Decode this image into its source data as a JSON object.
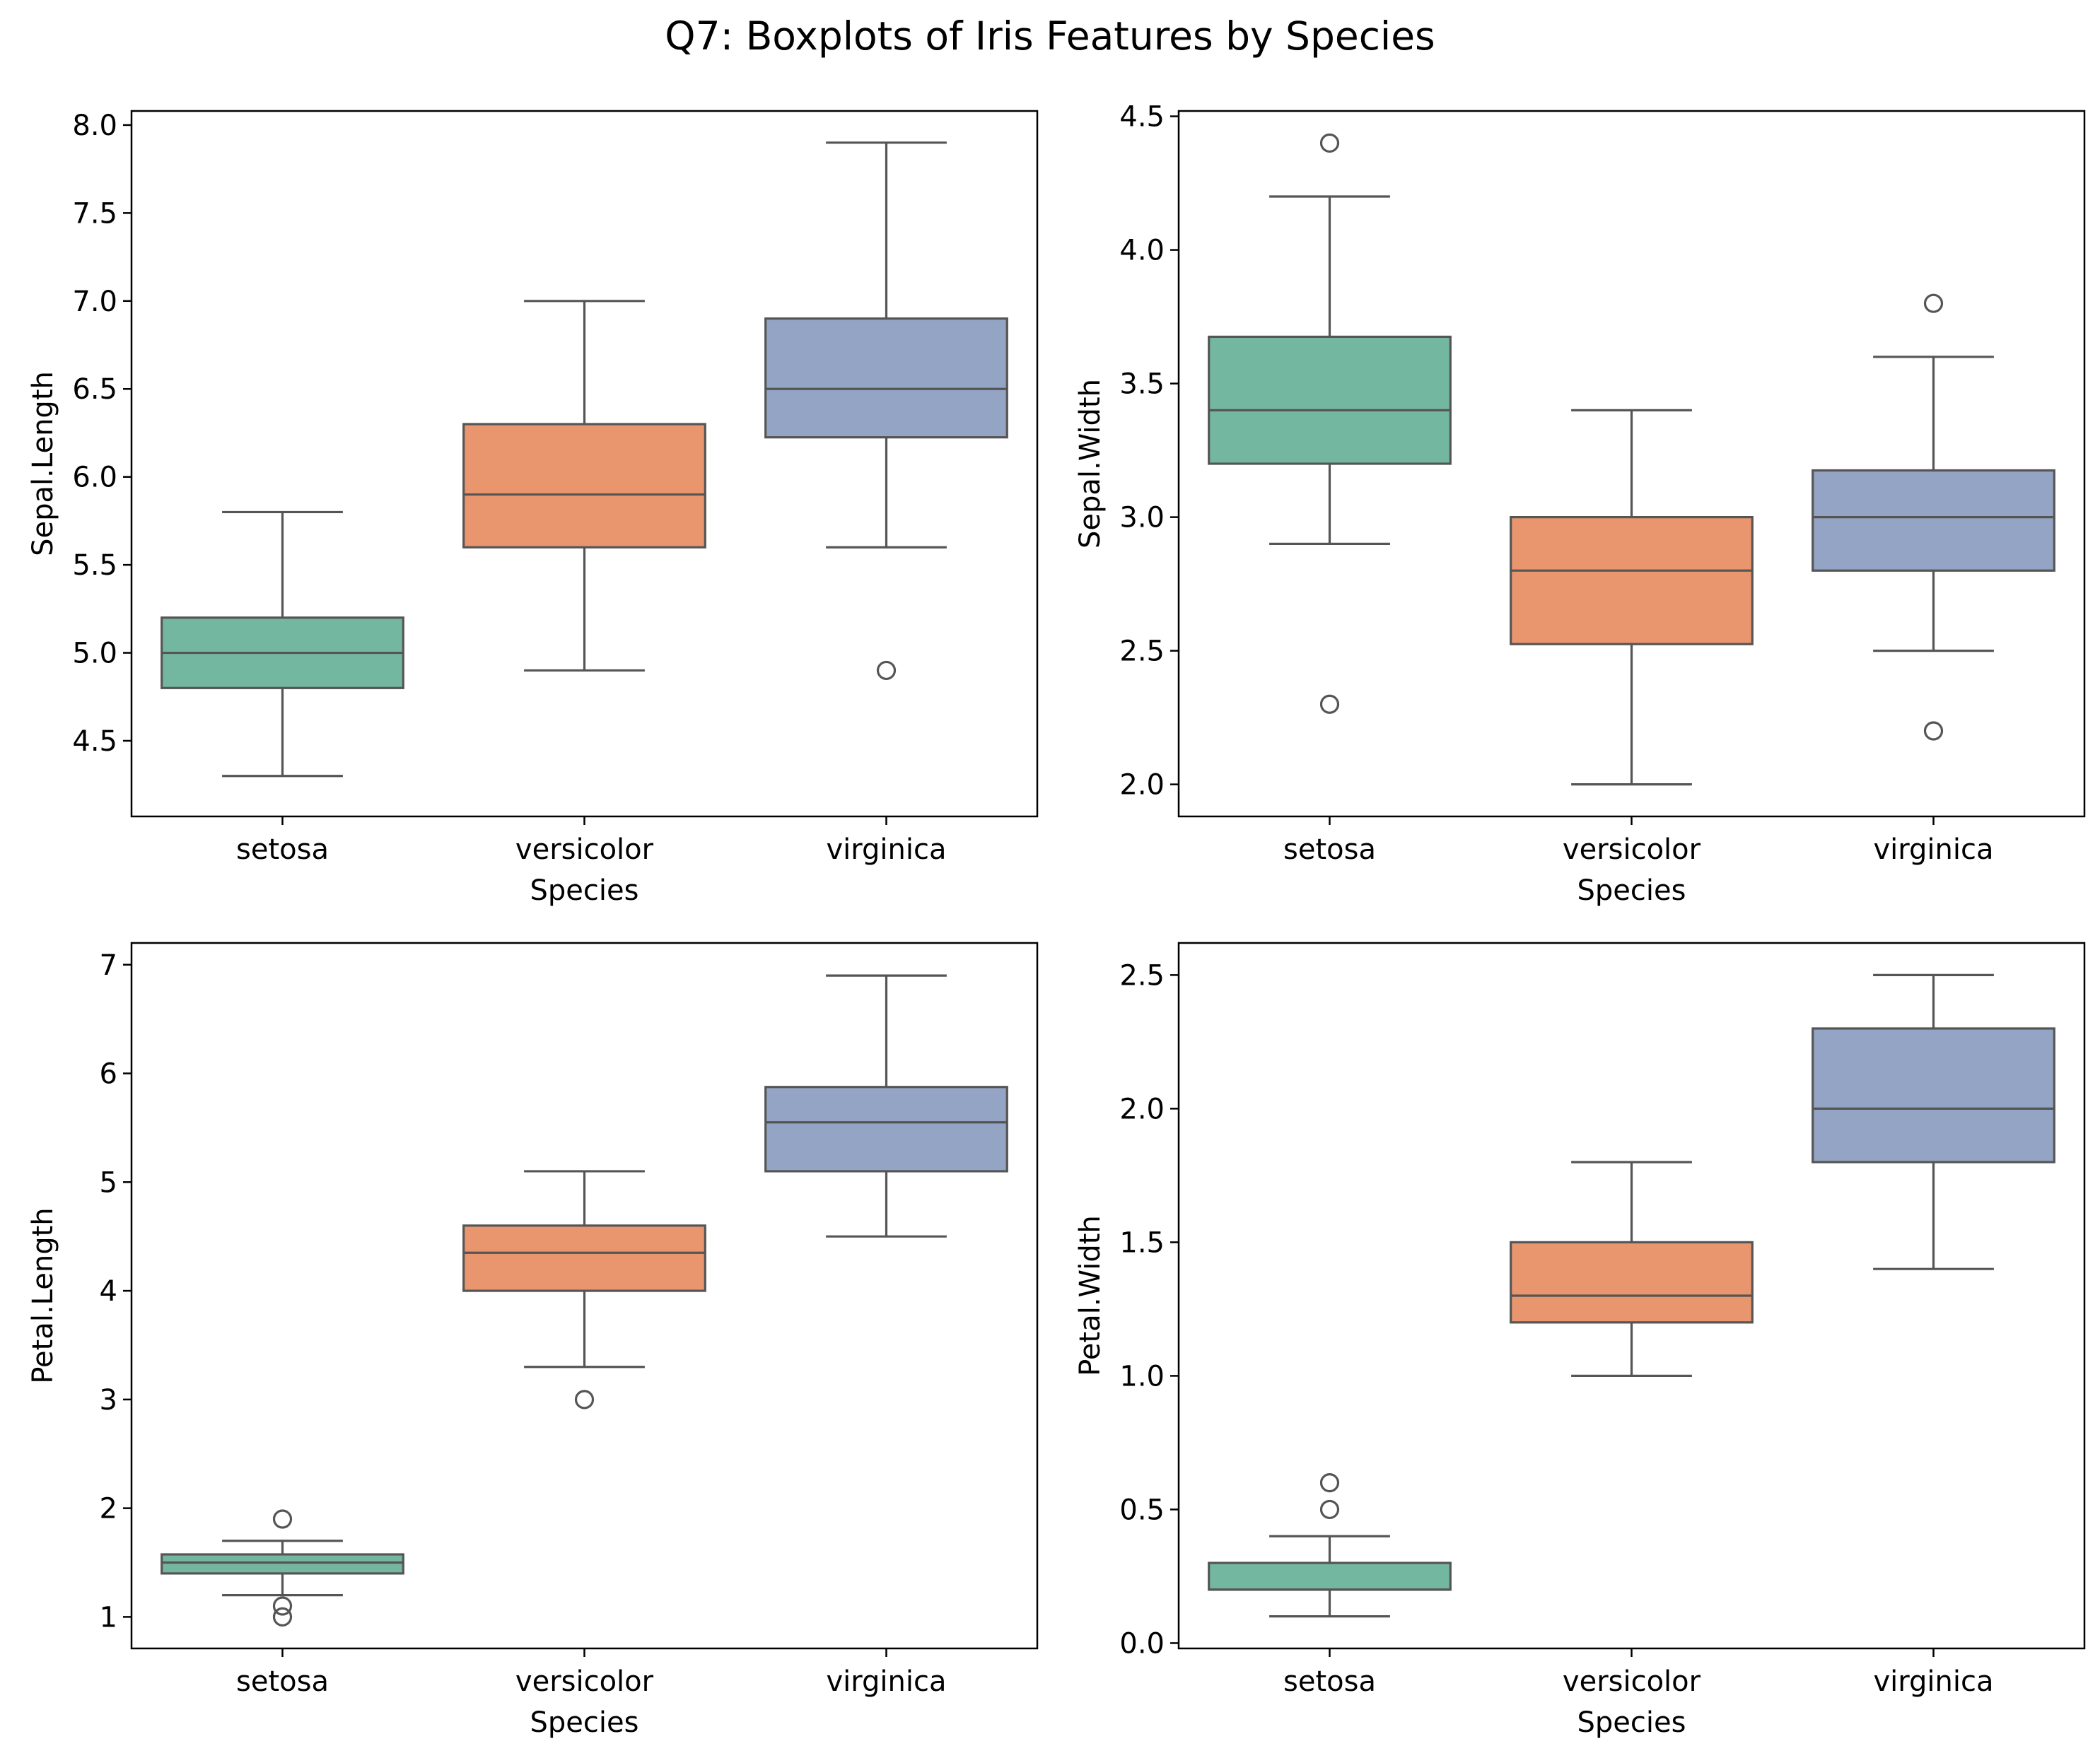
{
  "title": "Q7: Boxplots of Iris Features by Species",
  "colors": {
    "setosa": "#74b7a0",
    "versicolor": "#e9966f",
    "virginica": "#94a4c4",
    "line": "#555555",
    "axes": "#000000"
  },
  "chart_data": [
    {
      "type": "box",
      "xlabel": "Species",
      "ylabel": "Sepal.Length",
      "categories": [
        "setosa",
        "versicolor",
        "virginica"
      ],
      "ylim": [
        4.07,
        8.08
      ],
      "yticks": [
        4.5,
        5.0,
        5.5,
        6.0,
        6.5,
        7.0,
        7.5,
        8.0
      ],
      "ytick_labels": [
        "4.5",
        "5.0",
        "5.5",
        "6.0",
        "6.5",
        "7.0",
        "7.5",
        "8.0"
      ],
      "boxes": [
        {
          "name": "setosa",
          "whislo": 4.3,
          "q1": 4.8,
          "med": 5.0,
          "q3": 5.2,
          "whishi": 5.8,
          "fliers": []
        },
        {
          "name": "versicolor",
          "whislo": 4.9,
          "q1": 5.6,
          "med": 5.9,
          "q3": 6.3,
          "whishi": 7.0,
          "fliers": []
        },
        {
          "name": "virginica",
          "whislo": 5.6,
          "q1": 6.225,
          "med": 6.5,
          "q3": 6.9,
          "whishi": 7.9,
          "fliers": [
            4.9
          ]
        }
      ]
    },
    {
      "type": "box",
      "xlabel": "Species",
      "ylabel": "Sepal.Width",
      "categories": [
        "setosa",
        "versicolor",
        "virginica"
      ],
      "ylim": [
        1.88,
        4.52
      ],
      "yticks": [
        2.0,
        2.5,
        3.0,
        3.5,
        4.0,
        4.5
      ],
      "ytick_labels": [
        "2.0",
        "2.5",
        "3.0",
        "3.5",
        "4.0",
        "4.5"
      ],
      "boxes": [
        {
          "name": "setosa",
          "whislo": 2.9,
          "q1": 3.2,
          "med": 3.4,
          "q3": 3.675,
          "whishi": 4.2,
          "fliers": [
            4.4,
            2.3
          ]
        },
        {
          "name": "versicolor",
          "whislo": 2.0,
          "q1": 2.525,
          "med": 2.8,
          "q3": 3.0,
          "whishi": 3.4,
          "fliers": []
        },
        {
          "name": "virginica",
          "whislo": 2.5,
          "q1": 2.8,
          "med": 3.0,
          "q3": 3.175,
          "whishi": 3.6,
          "fliers": [
            3.8,
            2.2
          ]
        }
      ]
    },
    {
      "type": "box",
      "xlabel": "Species",
      "ylabel": "Petal.Length",
      "categories": [
        "setosa",
        "versicolor",
        "virginica"
      ],
      "ylim": [
        0.71,
        7.2
      ],
      "yticks": [
        1,
        2,
        3,
        4,
        5,
        6,
        7
      ],
      "ytick_labels": [
        "1",
        "2",
        "3",
        "4",
        "5",
        "6",
        "7"
      ],
      "boxes": [
        {
          "name": "setosa",
          "whislo": 1.2,
          "q1": 1.4,
          "med": 1.5,
          "q3": 1.575,
          "whishi": 1.7,
          "fliers": [
            1.9,
            1.1,
            1.0
          ]
        },
        {
          "name": "versicolor",
          "whislo": 3.3,
          "q1": 4.0,
          "med": 4.35,
          "q3": 4.6,
          "whishi": 5.1,
          "fliers": [
            3.0
          ]
        },
        {
          "name": "virginica",
          "whislo": 4.5,
          "q1": 5.1,
          "med": 5.55,
          "q3": 5.875,
          "whishi": 6.9,
          "fliers": []
        }
      ]
    },
    {
      "type": "box",
      "xlabel": "Species",
      "ylabel": "Petal.Width",
      "categories": [
        "setosa",
        "versicolor",
        "virginica"
      ],
      "ylim": [
        -0.02,
        2.62
      ],
      "yticks": [
        0.0,
        0.5,
        1.0,
        1.5,
        2.0,
        2.5
      ],
      "ytick_labels": [
        "0.0",
        "0.5",
        "1.0",
        "1.5",
        "2.0",
        "2.5"
      ],
      "boxes": [
        {
          "name": "setosa",
          "whislo": 0.1,
          "q1": 0.2,
          "med": 0.2,
          "q3": 0.3,
          "whishi": 0.4,
          "fliers": [
            0.6,
            0.5
          ]
        },
        {
          "name": "versicolor",
          "whislo": 1.0,
          "q1": 1.2,
          "med": 1.3,
          "q3": 1.5,
          "whishi": 1.8,
          "fliers": []
        },
        {
          "name": "virginica",
          "whislo": 1.4,
          "q1": 1.8,
          "med": 2.0,
          "q3": 2.3,
          "whishi": 2.5,
          "fliers": []
        }
      ]
    }
  ]
}
